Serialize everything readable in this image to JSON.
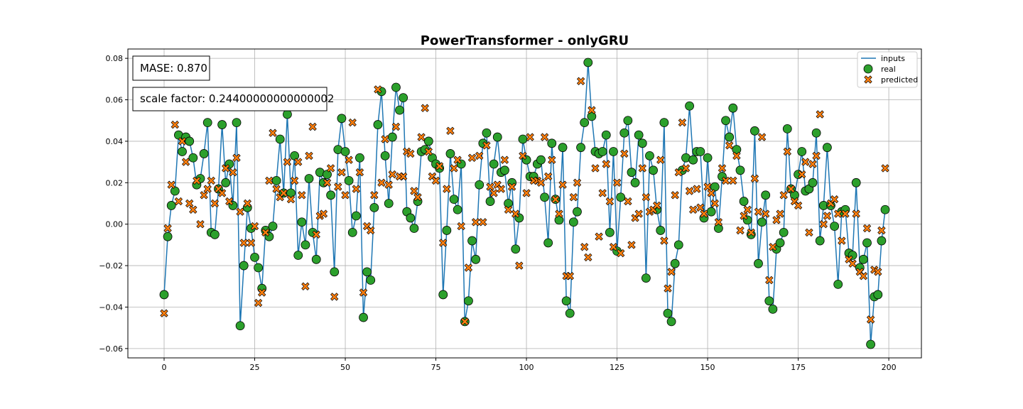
{
  "chart_data": {
    "type": "scatter",
    "title": "PowerTransformer - onlyGRU",
    "xlabel": "",
    "ylabel": "",
    "xlim": [
      -10,
      209
    ],
    "ylim": [
      -0.0645,
      0.0845
    ],
    "xticks": [
      0,
      25,
      50,
      75,
      100,
      125,
      150,
      175,
      200
    ],
    "yticks": [
      -0.06,
      -0.04,
      -0.02,
      0.0,
      0.02,
      0.04,
      0.06,
      0.08
    ],
    "ytick_labels": [
      "−0.06",
      "−0.04",
      "−0.02",
      "0.00",
      "0.02",
      "0.04",
      "0.06",
      "0.08"
    ],
    "grid": true,
    "legend_position": "top-right",
    "annotations": {
      "mase": "MASE: 0.870",
      "scale_factor": "scale factor: 0.24400000000000002"
    },
    "colors": {
      "inputs": "#1f77b4",
      "real": "#2ca02c",
      "predicted": "#ff7f0e"
    },
    "series": [
      {
        "name": "inputs",
        "kind": "line",
        "x": [
          0,
          1,
          2,
          3,
          4,
          5,
          6,
          7,
          8,
          9,
          10,
          11,
          12,
          13,
          14,
          15,
          16,
          17,
          18,
          19,
          20,
          21,
          22,
          23,
          24,
          25,
          26,
          27,
          28,
          29,
          30,
          31,
          32,
          33,
          34,
          35,
          36,
          37,
          38,
          39,
          40,
          41,
          42,
          43,
          44,
          45,
          46,
          47,
          48,
          49,
          50,
          51,
          52,
          53,
          54,
          55,
          56,
          57,
          58,
          59,
          60,
          61,
          62,
          63,
          64,
          65,
          66,
          67,
          68,
          69,
          70,
          71,
          72,
          73,
          74,
          75,
          76,
          77,
          78,
          79,
          80,
          81,
          82,
          83,
          84,
          85,
          86,
          87,
          88,
          89,
          90,
          91,
          92,
          93,
          94,
          95,
          96,
          97,
          98,
          99,
          100,
          101,
          102,
          103,
          104,
          105,
          106,
          107,
          108,
          109,
          110,
          111,
          112,
          113,
          114,
          115,
          116,
          117,
          118,
          119,
          120,
          121,
          122,
          123,
          124,
          125,
          126,
          127,
          128,
          129,
          130,
          131,
          132,
          133,
          134,
          135,
          136,
          137,
          138,
          139,
          140,
          141,
          142,
          143,
          144,
          145,
          146,
          147,
          148,
          149,
          150,
          151,
          152,
          153,
          154,
          155,
          156,
          157,
          158,
          159,
          160,
          161,
          162,
          163,
          164,
          165,
          166,
          167,
          168,
          169,
          170,
          171,
          172,
          173,
          174,
          175,
          176,
          177,
          178,
          179,
          180,
          181,
          182,
          183,
          184,
          185,
          186,
          187,
          188,
          189,
          190,
          191,
          192,
          193,
          194,
          195,
          196,
          197,
          198,
          199
        ],
        "y": [
          -0.034,
          -0.006,
          0.009,
          0.016,
          0.043,
          0.035,
          0.042,
          0.04,
          0.032,
          0.019,
          0.022,
          0.034,
          0.049,
          -0.004,
          -0.005,
          0.017,
          0.048,
          0.02,
          0.029,
          0.009,
          0.049,
          -0.049,
          -0.02,
          0.008,
          -0.002,
          -0.016,
          -0.021,
          -0.031,
          -0.003,
          -0.006,
          -0.001,
          0.021,
          0.041,
          0.015,
          0.053,
          0.015,
          0.033,
          -0.015,
          0.001,
          -0.01,
          0.022,
          -0.004,
          -0.017,
          0.025,
          0.02,
          0.024,
          0.014,
          -0.023,
          0.036,
          0.051,
          0.035,
          0.021,
          -0.004,
          0.004,
          0.032,
          -0.045,
          -0.023,
          -0.027,
          0.008,
          0.048,
          0.064,
          0.033,
          0.01,
          0.042,
          0.066,
          0.055,
          0.061,
          0.006,
          0.003,
          -0.002,
          0.011,
          0.035,
          0.036,
          0.04,
          0.032,
          0.029,
          0.027,
          -0.034,
          -0.003,
          0.034,
          0.012,
          0.007,
          0.029,
          -0.047,
          -0.037,
          -0.008,
          -0.017,
          0.019,
          0.039,
          0.044,
          0.011,
          0.029,
          0.042,
          0.025,
          0.026,
          0.01,
          0.02,
          -0.012,
          0.003,
          0.041,
          0.031,
          0.023,
          0.023,
          0.029,
          0.031,
          0.013,
          -0.009,
          0.039,
          0.012,
          0.002,
          0.037,
          -0.037,
          -0.043,
          0.001,
          0.006,
          0.037,
          0.049,
          0.078,
          0.052,
          0.035,
          0.034,
          0.035,
          0.043,
          -0.004,
          0.035,
          -0.013,
          0.013,
          0.044,
          0.05,
          0.025,
          0.02,
          0.043,
          0.039,
          -0.026,
          0.033,
          0.026,
          0.007,
          -0.003,
          0.049,
          -0.043,
          -0.047,
          -0.019,
          -0.01,
          0.026,
          0.032,
          0.057,
          0.031,
          0.035,
          0.035,
          0.003,
          0.032,
          0.006,
          0.018,
          -0.002,
          0.023,
          0.05,
          0.042,
          0.056,
          0.036,
          0.026,
          0.011,
          0.002,
          -0.005,
          0.045,
          -0.019,
          0.001,
          0.014,
          -0.037,
          -0.041,
          -0.012,
          -0.009,
          -0.004,
          0.046,
          0.017,
          0.014,
          0.024,
          0.035,
          0.016,
          0.017,
          0.02,
          0.044,
          -0.008,
          0.009,
          0.037,
          0.009,
          -0.001,
          -0.029,
          0.006,
          0.007,
          -0.014,
          -0.015,
          0.02,
          -0.021,
          -0.017,
          -0.009,
          -0.058,
          -0.035,
          -0.034,
          -0.008,
          0.007
        ]
      },
      {
        "name": "real",
        "kind": "scatter",
        "marker": "circle"
      },
      {
        "name": "predicted",
        "kind": "scatter",
        "marker": "x",
        "x": [
          0,
          1,
          2,
          3,
          4,
          5,
          6,
          7,
          8,
          9,
          10,
          11,
          12,
          13,
          14,
          15,
          16,
          17,
          18,
          19,
          20,
          21,
          22,
          23,
          24,
          25,
          26,
          27,
          28,
          29,
          30,
          31,
          32,
          33,
          34,
          35,
          36,
          37,
          38,
          39,
          40,
          41,
          42,
          43,
          44,
          45,
          46,
          47,
          48,
          49,
          50,
          51,
          52,
          53,
          54,
          55,
          56,
          57,
          58,
          59,
          60,
          61,
          62,
          63,
          64,
          65,
          66,
          67,
          68,
          69,
          70,
          71,
          72,
          73,
          74,
          75,
          76,
          77,
          78,
          79,
          80,
          81,
          82,
          83,
          84,
          85,
          86,
          87,
          88,
          89,
          90,
          91,
          92,
          93,
          94,
          95,
          96,
          97,
          98,
          99,
          100,
          101,
          102,
          103,
          104,
          105,
          106,
          107,
          108,
          109,
          110,
          111,
          112,
          113,
          114,
          115,
          116,
          117,
          118,
          119,
          120,
          121,
          122,
          123,
          124,
          125,
          126,
          127,
          128,
          129,
          130,
          131,
          132,
          133,
          134,
          135,
          136,
          137,
          138,
          139,
          140,
          141,
          142,
          143,
          144,
          145,
          146,
          147,
          148,
          149,
          150,
          151,
          152,
          153,
          154,
          155,
          156,
          157,
          158,
          159,
          160,
          161,
          162,
          163,
          164,
          165,
          166,
          167,
          168,
          169,
          170,
          171,
          172,
          173,
          174,
          175,
          176,
          177,
          178,
          179,
          180,
          181,
          182,
          183,
          184,
          185,
          186,
          187,
          188,
          189,
          190,
          191,
          192,
          193,
          194,
          195,
          196,
          197,
          198,
          199
        ],
        "y": [
          -0.043,
          -0.002,
          0.019,
          0.048,
          0.011,
          0.04,
          0.03,
          0.01,
          0.007,
          0.021,
          0.0,
          0.014,
          0.017,
          0.021,
          0.01,
          0.017,
          0.015,
          0.027,
          0.011,
          0.025,
          0.032,
          0.006,
          -0.009,
          0.01,
          -0.009,
          -0.001,
          -0.038,
          -0.033,
          -0.004,
          0.021,
          0.044,
          0.017,
          0.013,
          0.015,
          0.03,
          0.012,
          0.021,
          0.03,
          0.014,
          -0.03,
          0.033,
          0.047,
          -0.005,
          0.004,
          0.005,
          0.02,
          0.027,
          -0.035,
          0.018,
          0.025,
          0.014,
          0.031,
          0.049,
          0.017,
          0.025,
          -0.033,
          -0.001,
          -0.003,
          0.014,
          0.065,
          0.02,
          0.041,
          0.019,
          0.024,
          0.047,
          0.023,
          0.023,
          0.035,
          0.034,
          0.016,
          0.013,
          0.042,
          0.056,
          0.035,
          0.023,
          0.021,
          0.028,
          -0.009,
          0.017,
          0.045,
          0.027,
          0.031,
          -0.001,
          -0.047,
          -0.021,
          0.032,
          0.001,
          0.033,
          0.001,
          0.038,
          0.018,
          0.015,
          0.019,
          0.017,
          0.031,
          0.007,
          0.018,
          0.005,
          -0.02,
          0.033,
          0.015,
          0.042,
          0.021,
          0.021,
          0.02,
          0.042,
          0.023,
          0.031,
          0.012,
          0.005,
          0.019,
          -0.025,
          -0.025,
          0.013,
          0.02,
          0.069,
          -0.011,
          -0.016,
          0.055,
          0.027,
          -0.006,
          0.015,
          0.029,
          0.011,
          -0.011,
          0.02,
          -0.014,
          0.034,
          0.011,
          -0.01,
          0.003,
          0.005,
          0.027,
          0.013,
          0.006,
          0.007,
          0.009,
          0.031,
          -0.008,
          -0.031,
          -0.023,
          0.014,
          0.025,
          0.049,
          0.027,
          0.016,
          0.007,
          0.017,
          0.008,
          0.005,
          0.018,
          0.015,
          0.01,
          0.001,
          0.027,
          0.021,
          0.038,
          0.021,
          0.033,
          -0.003,
          0.004,
          0.007,
          -0.004,
          0.022,
          0.006,
          0.042,
          0.005,
          -0.027,
          -0.011,
          0.002,
          0.005,
          0.014,
          0.035,
          0.017,
          0.011,
          0.009,
          0.024,
          0.03,
          -0.004,
          0.029,
          0.033,
          0.053,
          0.0,
          0.004,
          0.01,
          0.012,
          0.005,
          -0.008,
          0.005,
          -0.017,
          -0.019,
          0.005,
          -0.023,
          -0.025,
          -0.002,
          -0.046,
          -0.022,
          -0.023,
          -0.003,
          0.027
        ]
      }
    ]
  }
}
